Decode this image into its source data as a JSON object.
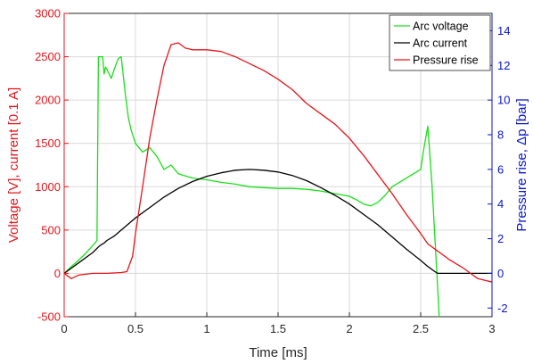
{
  "chart_data": {
    "type": "line",
    "title": "",
    "xlabel": "Time [ms]",
    "ylabel_left": "Voltage [V], current [0.1 A]",
    "ylabel_right": "Pressure rise, Δp [bar]",
    "xlim": [
      0,
      3
    ],
    "ylim_left": [
      -500,
      3000
    ],
    "ylim_right": [
      -2.5,
      15
    ],
    "x_ticks": [
      "0",
      "0.5",
      "1",
      "1.5",
      "2",
      "2.5",
      "3"
    ],
    "y_left_ticks": [
      "-500",
      "0",
      "500",
      "1000",
      "1500",
      "2000",
      "2500",
      "3000"
    ],
    "y_right_ticks": [
      "-2",
      "0",
      "2",
      "4",
      "6",
      "8",
      "10",
      "12",
      "14"
    ],
    "grid": true,
    "legend_position": "top-right",
    "colors": {
      "left_axis": "#e8141b",
      "right_axis": "#0a14c8",
      "grid": "#d9d9d9"
    },
    "series": [
      {
        "name": "Arc voltage",
        "axis": "left",
        "color": "#18e018",
        "x": [
          0,
          0.05,
          0.1,
          0.15,
          0.2,
          0.23,
          0.24,
          0.27,
          0.28,
          0.29,
          0.3,
          0.33,
          0.35,
          0.38,
          0.4,
          0.43,
          0.45,
          0.47,
          0.5,
          0.55,
          0.6,
          0.65,
          0.7,
          0.75,
          0.8,
          0.9,
          1.0,
          1.1,
          1.2,
          1.3,
          1.4,
          1.5,
          1.6,
          1.7,
          1.8,
          1.9,
          2.0,
          2.05,
          2.1,
          2.15,
          2.2,
          2.25,
          2.3,
          2.35,
          2.4,
          2.45,
          2.5,
          2.52,
          2.55,
          2.58,
          2.6,
          2.63
        ],
        "y": [
          0,
          80,
          150,
          230,
          320,
          380,
          2500,
          2500,
          2300,
          2380,
          2350,
          2250,
          2350,
          2480,
          2500,
          2050,
          1800,
          1650,
          1500,
          1400,
          1450,
          1350,
          1200,
          1250,
          1150,
          1100,
          1080,
          1050,
          1030,
          1000,
          990,
          980,
          980,
          970,
          950,
          920,
          890,
          850,
          800,
          780,
          820,
          900,
          1000,
          1050,
          1100,
          1150,
          1200,
          1420,
          1700,
          1000,
          400,
          -500
        ]
      },
      {
        "name": "Arc current",
        "axis": "left",
        "color": "#000000",
        "x": [
          0,
          0.1,
          0.2,
          0.25,
          0.28,
          0.3,
          0.35,
          0.4,
          0.5,
          0.6,
          0.7,
          0.8,
          0.9,
          1.0,
          1.1,
          1.2,
          1.3,
          1.4,
          1.5,
          1.6,
          1.7,
          1.8,
          1.9,
          2.0,
          2.1,
          2.2,
          2.3,
          2.4,
          2.5,
          2.55,
          2.6,
          2.62,
          2.7,
          2.8,
          2.9,
          3.0
        ],
        "y": [
          0,
          120,
          240,
          320,
          350,
          380,
          430,
          500,
          640,
          760,
          880,
          980,
          1060,
          1120,
          1160,
          1190,
          1200,
          1190,
          1170,
          1130,
          1070,
          990,
          900,
          800,
          680,
          560,
          420,
          280,
          150,
          80,
          20,
          0,
          0,
          0,
          0,
          0
        ]
      },
      {
        "name": "Pressure rise",
        "axis": "right",
        "color": "#e8141b",
        "x": [
          0,
          0.05,
          0.1,
          0.2,
          0.3,
          0.4,
          0.44,
          0.48,
          0.5,
          0.55,
          0.6,
          0.65,
          0.7,
          0.75,
          0.8,
          0.85,
          0.9,
          1.0,
          1.1,
          1.2,
          1.3,
          1.4,
          1.5,
          1.6,
          1.7,
          1.8,
          1.9,
          2.0,
          2.1,
          2.2,
          2.3,
          2.4,
          2.5,
          2.55,
          2.6,
          2.7,
          2.8,
          2.9,
          3.0
        ],
        "y": [
          0,
          -0.3,
          -0.1,
          0,
          0,
          0.05,
          0.1,
          1.0,
          2.3,
          5.0,
          7.8,
          10.0,
          12.0,
          13.2,
          13.3,
          13.0,
          12.9,
          12.9,
          12.8,
          12.5,
          12.1,
          11.7,
          11.2,
          10.6,
          9.8,
          9.2,
          8.6,
          7.8,
          6.8,
          5.7,
          4.6,
          3.4,
          2.3,
          1.7,
          1.4,
          0.8,
          0.3,
          -0.3,
          -0.5
        ]
      }
    ]
  }
}
